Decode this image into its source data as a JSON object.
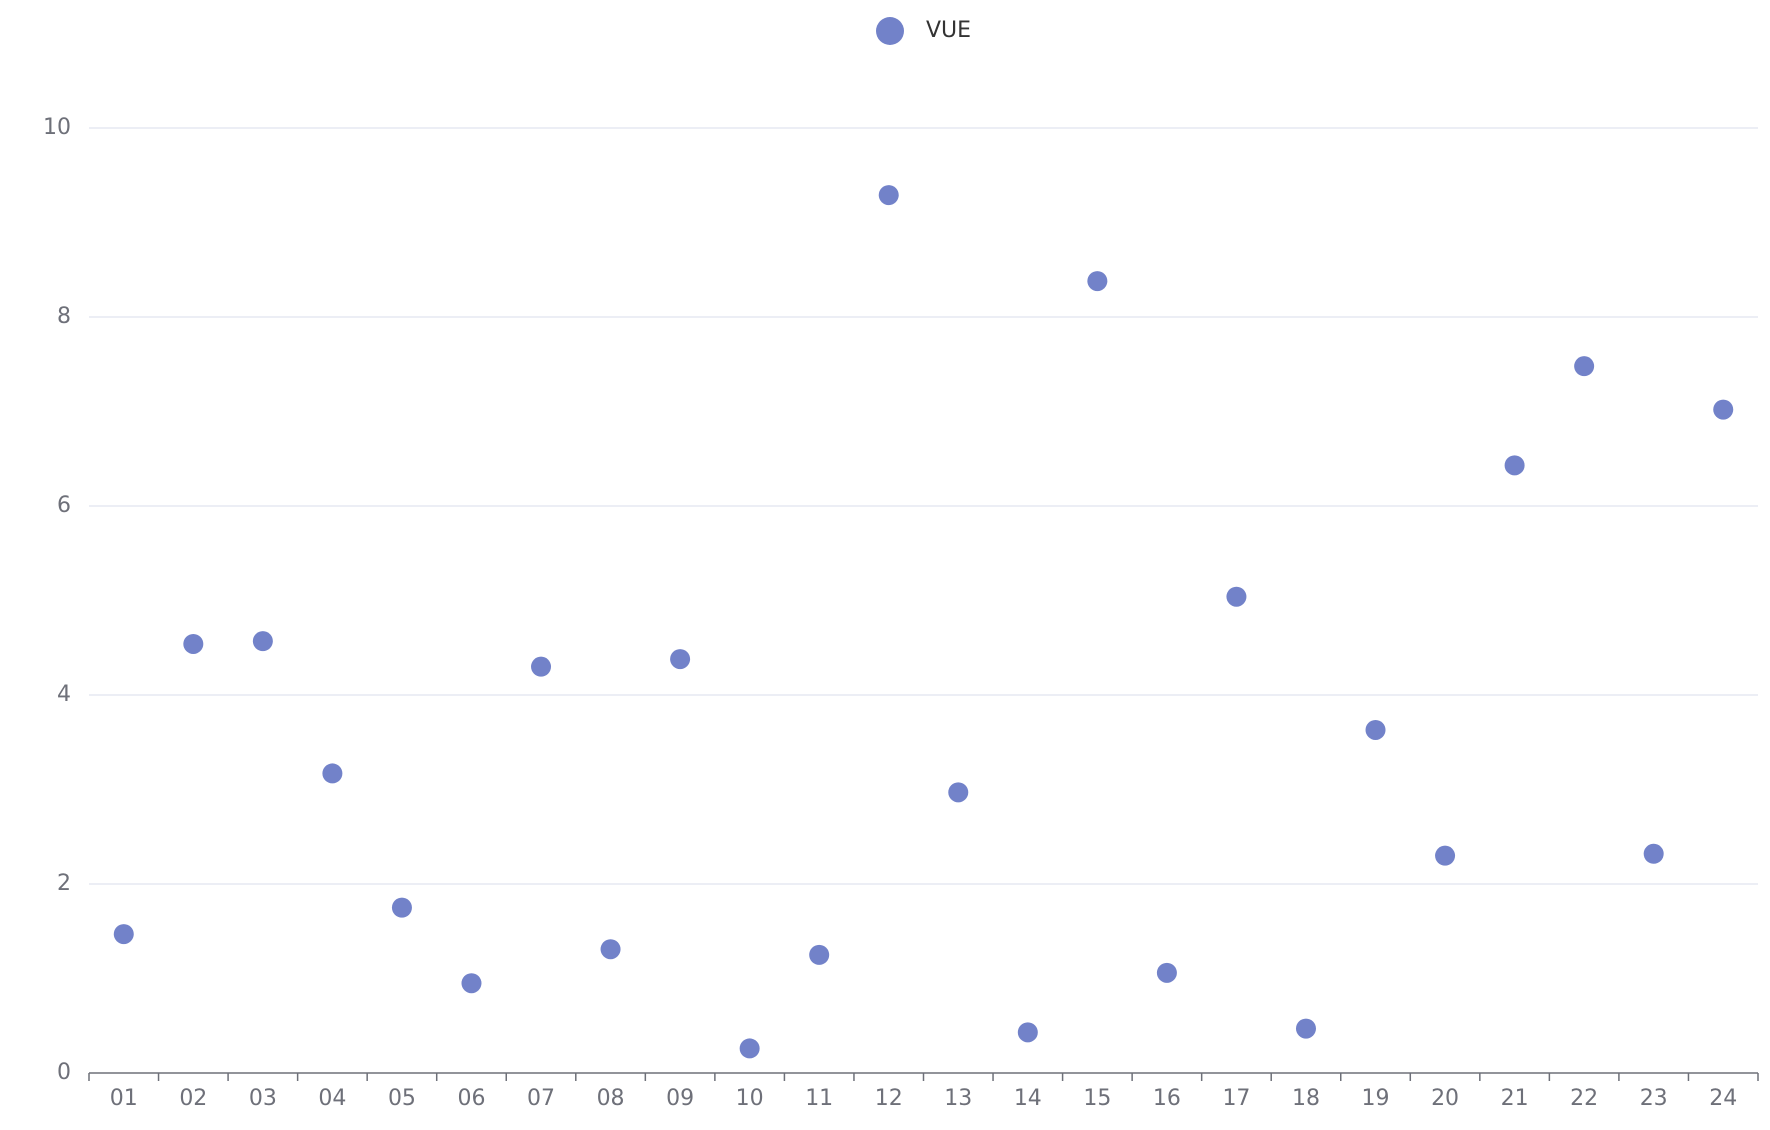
{
  "chart_data": {
    "type": "scatter",
    "categories": [
      "01",
      "02",
      "03",
      "04",
      "05",
      "06",
      "07",
      "08",
      "09",
      "10",
      "11",
      "12",
      "13",
      "14",
      "15",
      "16",
      "17",
      "18",
      "19",
      "20",
      "21",
      "22",
      "23",
      "24"
    ],
    "series": [
      {
        "name": "VUE",
        "color": "#7282c9",
        "values": [
          1.47,
          4.54,
          4.57,
          3.17,
          1.75,
          0.95,
          4.3,
          1.31,
          4.38,
          0.26,
          1.25,
          9.29,
          2.97,
          0.43,
          8.38,
          1.06,
          5.04,
          0.47,
          3.63,
          2.3,
          6.43,
          7.48,
          2.32,
          7.02
        ]
      }
    ],
    "ylim": [
      0,
      10
    ],
    "yticks": [
      0,
      2,
      4,
      6,
      8,
      10
    ],
    "grid": true,
    "legend": "top"
  }
}
